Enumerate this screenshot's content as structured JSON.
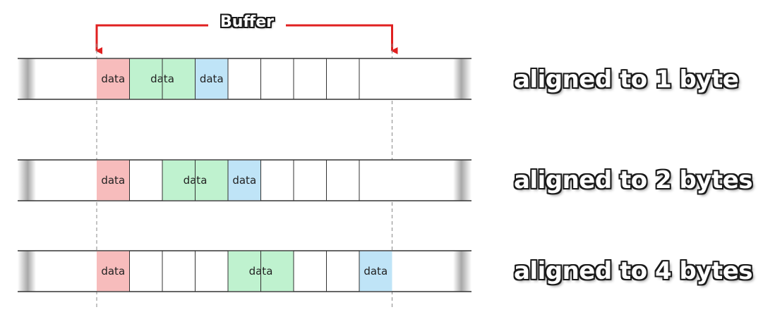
{
  "buffer": {
    "label": "Buffer",
    "arrow_color": "#e02020"
  },
  "rows": [
    {
      "label": "aligned to 1 byte",
      "alignment_bytes": 1,
      "blocks": [
        {
          "text": "data",
          "start_cell": 0,
          "span": 1,
          "color": "#f7bcbc"
        },
        {
          "text": "data",
          "start_cell": 1,
          "span": 2,
          "color": "#bff2cf"
        },
        {
          "text": "data",
          "start_cell": 3,
          "span": 1,
          "color": "#bfe4f7"
        }
      ]
    },
    {
      "label": "aligned to 2 bytes",
      "alignment_bytes": 2,
      "blocks": [
        {
          "text": "data",
          "start_cell": 0,
          "span": 1,
          "color": "#f7bcbc"
        },
        {
          "text": "data",
          "start_cell": 2,
          "span": 2,
          "color": "#bff2cf"
        },
        {
          "text": "data",
          "start_cell": 4,
          "span": 1,
          "color": "#bfe4f7"
        }
      ]
    },
    {
      "label": "aligned to 4 bytes",
      "alignment_bytes": 4,
      "blocks": [
        {
          "text": "data",
          "start_cell": 0,
          "span": 1,
          "color": "#f7bcbc"
        },
        {
          "text": "data",
          "start_cell": 4,
          "span": 2,
          "color": "#bff2cf"
        },
        {
          "text": "data",
          "start_cell": 8,
          "span": 1,
          "color": "#bfe4f7"
        }
      ]
    }
  ],
  "cells_per_row": 9,
  "colors": {
    "cell_border": "#333333",
    "guide_line": "#888888"
  }
}
